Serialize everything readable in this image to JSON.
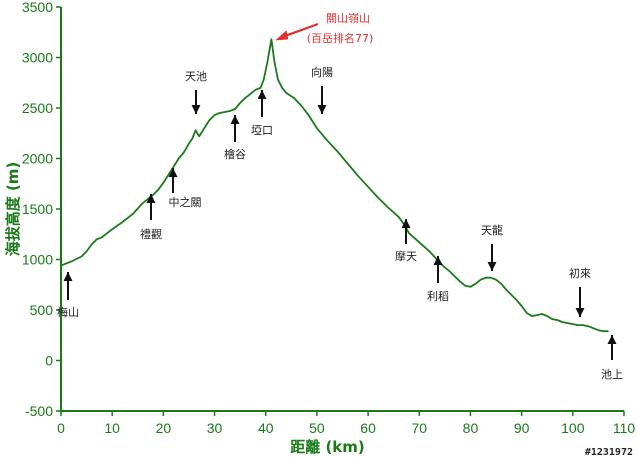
{
  "chart_data": {
    "type": "line",
    "xlabel": "距離 (km)",
    "ylabel": "海拔高度 (m)",
    "xlim": [
      0,
      110
    ],
    "ylim": [
      -500,
      3500
    ],
    "xticks": [
      0,
      10,
      20,
      30,
      40,
      50,
      60,
      70,
      80,
      90,
      100,
      110
    ],
    "yticks": [
      -500,
      0,
      500,
      1000,
      1500,
      2000,
      2500,
      3000,
      3500
    ],
    "xtick_labels": [
      "0",
      "10",
      "20",
      "30",
      "40",
      "50",
      "60",
      "70",
      "80",
      "90",
      "100",
      "110"
    ],
    "ytick_labels": [
      "-500",
      "0",
      "500",
      "1000",
      "1500",
      "2000",
      "2500",
      "3000",
      "3500"
    ],
    "grid": false,
    "series": [
      {
        "color": "#1a7a1a",
        "x": [
          0,
          2,
          4,
          5,
          6,
          7,
          8,
          9,
          10,
          12,
          14,
          16,
          17,
          18,
          19,
          20,
          21,
          22,
          23,
          24,
          25,
          25.7,
          26.3,
          27,
          28,
          29,
          30,
          31,
          32,
          33,
          34,
          35,
          36,
          37,
          38,
          39,
          39.6,
          40.3,
          41.1,
          41.7,
          42.4,
          43.2,
          44,
          45.5,
          47,
          48.5,
          50,
          52,
          54,
          56,
          58,
          60,
          62,
          64,
          66,
          67,
          68,
          70,
          72,
          74,
          75,
          76,
          77,
          78,
          79,
          80,
          81,
          82,
          83,
          84,
          85,
          86,
          87,
          88,
          89,
          90,
          91,
          92,
          93,
          94,
          95,
          96,
          97,
          98,
          99,
          100,
          101,
          102,
          103,
          104,
          105,
          106,
          107
        ],
        "y": [
          940,
          980,
          1030,
          1080,
          1150,
          1200,
          1220,
          1260,
          1300,
          1370,
          1450,
          1560,
          1600,
          1640,
          1690,
          1760,
          1840,
          1920,
          2000,
          2060,
          2150,
          2200,
          2280,
          2220,
          2300,
          2380,
          2430,
          2450,
          2460,
          2470,
          2490,
          2550,
          2600,
          2640,
          2680,
          2700,
          2780,
          2950,
          3180,
          2960,
          2780,
          2700,
          2650,
          2600,
          2520,
          2420,
          2300,
          2180,
          2070,
          1950,
          1830,
          1720,
          1610,
          1510,
          1420,
          1350,
          1260,
          1170,
          1080,
          970,
          920,
          880,
          830,
          780,
          740,
          730,
          760,
          800,
          820,
          820,
          800,
          760,
          700,
          650,
          600,
          540,
          470,
          440,
          450,
          460,
          440,
          410,
          400,
          380,
          370,
          360,
          350,
          350,
          340,
          320,
          300,
          290,
          290
        ]
      }
    ],
    "annotations": [
      {
        "label": "梅山",
        "x": 1.5,
        "y": 890
      },
      {
        "label": "禮觀",
        "x": 17,
        "y": 1630
      },
      {
        "label": "中之關",
        "x": 21.5,
        "y": 1860
      },
      {
        "label": "天池",
        "x": 26.5,
        "y": 2380
      },
      {
        "label": "檜谷",
        "x": 34,
        "y": 2490
      },
      {
        "label": "埡口",
        "x": 38.9,
        "y": 2700
      },
      {
        "label": "向陽",
        "x": 50,
        "y": 2400
      },
      {
        "label": "摩天",
        "x": 66.3,
        "y": 1420
      },
      {
        "label": "利稻",
        "x": 72.2,
        "y": 1060
      },
      {
        "label": "天龍",
        "x": 83,
        "y": 820
      },
      {
        "label": "初來",
        "x": 100,
        "y": 380
      },
      {
        "label": "池上",
        "x": 107,
        "y": 300
      }
    ],
    "peak_annotation": {
      "lines": [
        "關山嶺山",
        "(百岳排名77)"
      ],
      "x": 41.1,
      "y": 3180,
      "color": "#e03030"
    }
  },
  "watermark": "#1231972",
  "colors": {
    "axis": "#1a7a1a",
    "line": "#1a7a1a",
    "peak": "#e03030",
    "text": "#222222"
  }
}
